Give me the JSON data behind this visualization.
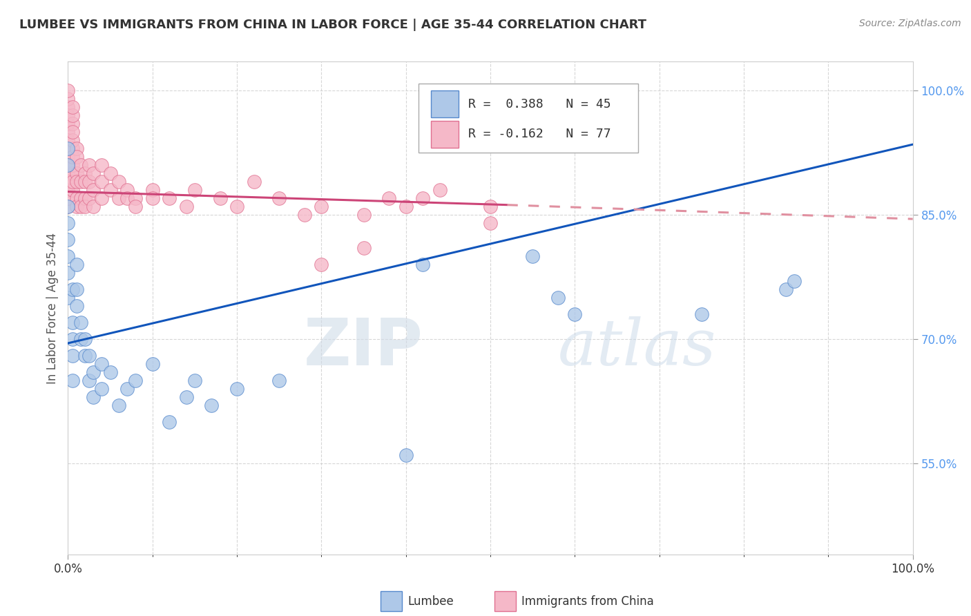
{
  "title": "LUMBEE VS IMMIGRANTS FROM CHINA IN LABOR FORCE | AGE 35-44 CORRELATION CHART",
  "source": "Source: ZipAtlas.com",
  "ylabel": "In Labor Force | Age 35-44",
  "xmin": 0.0,
  "xmax": 1.0,
  "ymin": 0.44,
  "ymax": 1.035,
  "ytick_values": [
    0.55,
    0.7,
    0.85,
    1.0
  ],
  "xtick_values": [
    0.0,
    1.0
  ],
  "legend_labels": [
    "Lumbee",
    "Immigrants from China"
  ],
  "blue_fill": "#aec8e8",
  "blue_edge": "#5588cc",
  "pink_fill": "#f5b8c8",
  "pink_edge": "#e07090",
  "blue_line_color": "#1155bb",
  "pink_line_solid_color": "#cc4477",
  "pink_line_dash_color": "#e090a0",
  "R_blue": 0.388,
  "N_blue": 45,
  "R_pink": -0.162,
  "N_pink": 77,
  "blue_line_x0": 0.0,
  "blue_line_y0": 0.695,
  "blue_line_x1": 1.0,
  "blue_line_y1": 0.935,
  "pink_line_solid_x0": 0.0,
  "pink_line_solid_y0": 0.878,
  "pink_line_solid_x1": 0.52,
  "pink_line_solid_y1": 0.862,
  "pink_line_dash_x0": 0.52,
  "pink_line_dash_y0": 0.862,
  "pink_line_dash_x1": 1.0,
  "pink_line_dash_y1": 0.845,
  "blue_scatter": [
    [
      0.0,
      0.86
    ],
    [
      0.0,
      0.91
    ],
    [
      0.0,
      0.93
    ],
    [
      0.0,
      0.75
    ],
    [
      0.0,
      0.78
    ],
    [
      0.0,
      0.8
    ],
    [
      0.0,
      0.82
    ],
    [
      0.0,
      0.84
    ],
    [
      0.005,
      0.7
    ],
    [
      0.005,
      0.72
    ],
    [
      0.005,
      0.76
    ],
    [
      0.005,
      0.68
    ],
    [
      0.005,
      0.65
    ],
    [
      0.01,
      0.74
    ],
    [
      0.01,
      0.76
    ],
    [
      0.01,
      0.79
    ],
    [
      0.015,
      0.7
    ],
    [
      0.015,
      0.72
    ],
    [
      0.02,
      0.68
    ],
    [
      0.02,
      0.7
    ],
    [
      0.025,
      0.65
    ],
    [
      0.025,
      0.68
    ],
    [
      0.03,
      0.63
    ],
    [
      0.03,
      0.66
    ],
    [
      0.04,
      0.64
    ],
    [
      0.04,
      0.67
    ],
    [
      0.05,
      0.66
    ],
    [
      0.06,
      0.62
    ],
    [
      0.07,
      0.64
    ],
    [
      0.08,
      0.65
    ],
    [
      0.1,
      0.67
    ],
    [
      0.12,
      0.6
    ],
    [
      0.14,
      0.63
    ],
    [
      0.15,
      0.65
    ],
    [
      0.17,
      0.62
    ],
    [
      0.2,
      0.64
    ],
    [
      0.25,
      0.65
    ],
    [
      0.4,
      0.56
    ],
    [
      0.42,
      0.79
    ],
    [
      0.55,
      0.8
    ],
    [
      0.58,
      0.75
    ],
    [
      0.6,
      0.73
    ],
    [
      0.75,
      0.73
    ],
    [
      0.85,
      0.76
    ],
    [
      0.86,
      0.77
    ]
  ],
  "pink_scatter": [
    [
      0.0,
      0.98
    ],
    [
      0.0,
      0.99
    ],
    [
      0.0,
      1.0
    ],
    [
      0.0,
      0.95
    ],
    [
      0.0,
      0.96
    ],
    [
      0.0,
      0.97
    ],
    [
      0.0,
      0.92
    ],
    [
      0.0,
      0.93
    ],
    [
      0.0,
      0.94
    ],
    [
      0.0,
      0.9
    ],
    [
      0.0,
      0.91
    ],
    [
      0.0,
      0.88
    ],
    [
      0.0,
      0.89
    ],
    [
      0.0,
      0.86
    ],
    [
      0.0,
      0.87
    ],
    [
      0.005,
      0.96
    ],
    [
      0.005,
      0.97
    ],
    [
      0.005,
      0.98
    ],
    [
      0.005,
      0.93
    ],
    [
      0.005,
      0.94
    ],
    [
      0.005,
      0.95
    ],
    [
      0.005,
      0.9
    ],
    [
      0.005,
      0.91
    ],
    [
      0.005,
      0.92
    ],
    [
      0.005,
      0.88
    ],
    [
      0.005,
      0.89
    ],
    [
      0.01,
      0.93
    ],
    [
      0.01,
      0.92
    ],
    [
      0.01,
      0.9
    ],
    [
      0.01,
      0.89
    ],
    [
      0.01,
      0.87
    ],
    [
      0.01,
      0.86
    ],
    [
      0.015,
      0.91
    ],
    [
      0.015,
      0.89
    ],
    [
      0.015,
      0.87
    ],
    [
      0.015,
      0.86
    ],
    [
      0.02,
      0.9
    ],
    [
      0.02,
      0.89
    ],
    [
      0.02,
      0.87
    ],
    [
      0.02,
      0.86
    ],
    [
      0.025,
      0.91
    ],
    [
      0.025,
      0.89
    ],
    [
      0.025,
      0.87
    ],
    [
      0.03,
      0.9
    ],
    [
      0.03,
      0.88
    ],
    [
      0.03,
      0.86
    ],
    [
      0.04,
      0.91
    ],
    [
      0.04,
      0.89
    ],
    [
      0.04,
      0.87
    ],
    [
      0.05,
      0.9
    ],
    [
      0.05,
      0.88
    ],
    [
      0.06,
      0.89
    ],
    [
      0.06,
      0.87
    ],
    [
      0.07,
      0.88
    ],
    [
      0.07,
      0.87
    ],
    [
      0.08,
      0.87
    ],
    [
      0.08,
      0.86
    ],
    [
      0.1,
      0.88
    ],
    [
      0.1,
      0.87
    ],
    [
      0.12,
      0.87
    ],
    [
      0.14,
      0.86
    ],
    [
      0.15,
      0.88
    ],
    [
      0.18,
      0.87
    ],
    [
      0.2,
      0.86
    ],
    [
      0.22,
      0.89
    ],
    [
      0.25,
      0.87
    ],
    [
      0.28,
      0.85
    ],
    [
      0.3,
      0.86
    ],
    [
      0.35,
      0.85
    ],
    [
      0.38,
      0.87
    ],
    [
      0.4,
      0.86
    ],
    [
      0.42,
      0.87
    ],
    [
      0.44,
      0.88
    ],
    [
      0.5,
      0.86
    ],
    [
      0.3,
      0.79
    ],
    [
      0.35,
      0.81
    ],
    [
      0.5,
      0.84
    ]
  ],
  "watermark_zip": "ZIP",
  "watermark_atlas": "atlas",
  "background_color": "#ffffff",
  "grid_color": "#cccccc",
  "tick_color_y": "#5599ee",
  "tick_color_x": "#333333"
}
